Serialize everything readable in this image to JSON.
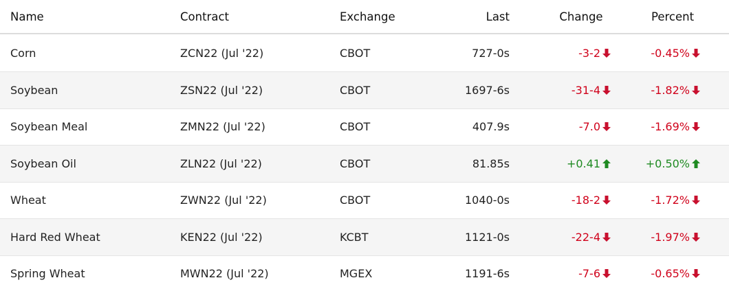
{
  "table": {
    "columns": [
      "Name",
      "Contract",
      "Exchange",
      "Last",
      "Change",
      "Percent"
    ],
    "rows": [
      [
        "Corn",
        "ZCN22 (Jul '22)",
        "CBOT",
        "727-0s",
        "-3-2",
        "-0.45%"
      ],
      [
        "Soybean",
        "ZSN22 (Jul '22)",
        "CBOT",
        "1697-6s",
        "-31-4",
        "-1.82%"
      ],
      [
        "Soybean Meal",
        "ZMN22 (Jul '22)",
        "CBOT",
        "407.9s",
        "-7.0",
        "-1.69%"
      ],
      [
        "Soybean Oil",
        "ZLN22 (Jul '22)",
        "CBOT",
        "81.85s",
        "+0.41",
        "+0.50%"
      ],
      [
        "Wheat",
        "ZWN22 (Jul '22)",
        "CBOT",
        "1040-0s",
        "-18-2",
        "-1.72%"
      ],
      [
        "Hard Red Wheat",
        "KEN22 (Jul '22)",
        "KCBT",
        "1121-0s",
        "-22-4",
        "-1.97%"
      ],
      [
        "Spring Wheat",
        "MWN22 (Jul '22)",
        "MGEX",
        "1191-6s",
        "-7-6",
        "-0.65%"
      ]
    ]
  }
}
